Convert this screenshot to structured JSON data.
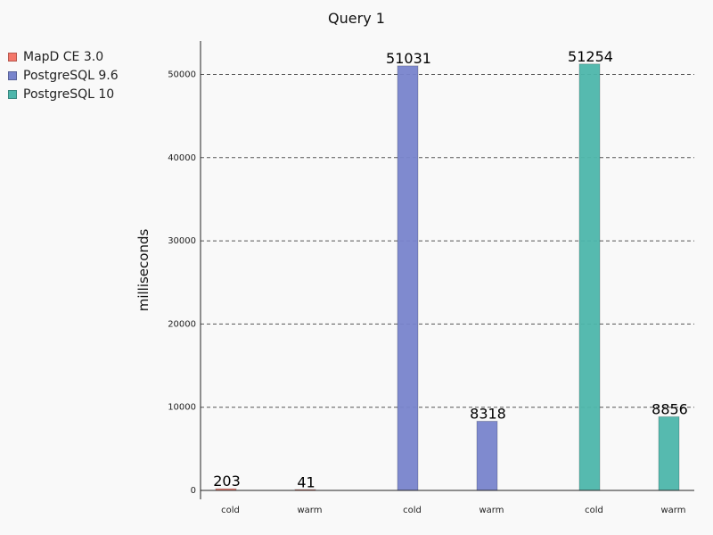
{
  "chart_data": {
    "type": "bar",
    "title": "Query 1",
    "ylabel": "milliseconds",
    "xlabel": "",
    "ylim": [
      0,
      54000
    ],
    "yticks": [
      0,
      10000,
      20000,
      30000,
      40000,
      50000
    ],
    "ytick_labels": [
      "0",
      "10000",
      "20000",
      "30000",
      "40000",
      "50000"
    ],
    "grid": "horizontal dashed",
    "legend_position": "left",
    "groups": [
      {
        "series": "MapD CE 3.0",
        "color": "#f4776a",
        "bars": [
          {
            "label": "cold",
            "value": 203,
            "value_label": "203"
          },
          {
            "label": "warm",
            "value": 41,
            "value_label": "41"
          }
        ]
      },
      {
        "series": "PostgreSQL 9.6",
        "color": "#7884cc",
        "bars": [
          {
            "label": "cold",
            "value": 51031,
            "value_label": "51031"
          },
          {
            "label": "warm",
            "value": 8318,
            "value_label": "8318"
          }
        ]
      },
      {
        "series": "PostgreSQL 10",
        "color": "#4db6ab",
        "bars": [
          {
            "label": "cold",
            "value": 51254,
            "value_label": "51254"
          },
          {
            "label": "warm",
            "value": 8856,
            "value_label": "8856"
          }
        ]
      }
    ]
  },
  "legend": {
    "items": [
      {
        "label": "MapD CE 3.0",
        "color": "#f4776a"
      },
      {
        "label": "PostgreSQL 9.6",
        "color": "#7884cc"
      },
      {
        "label": "PostgreSQL 10",
        "color": "#4db6ab"
      }
    ]
  }
}
